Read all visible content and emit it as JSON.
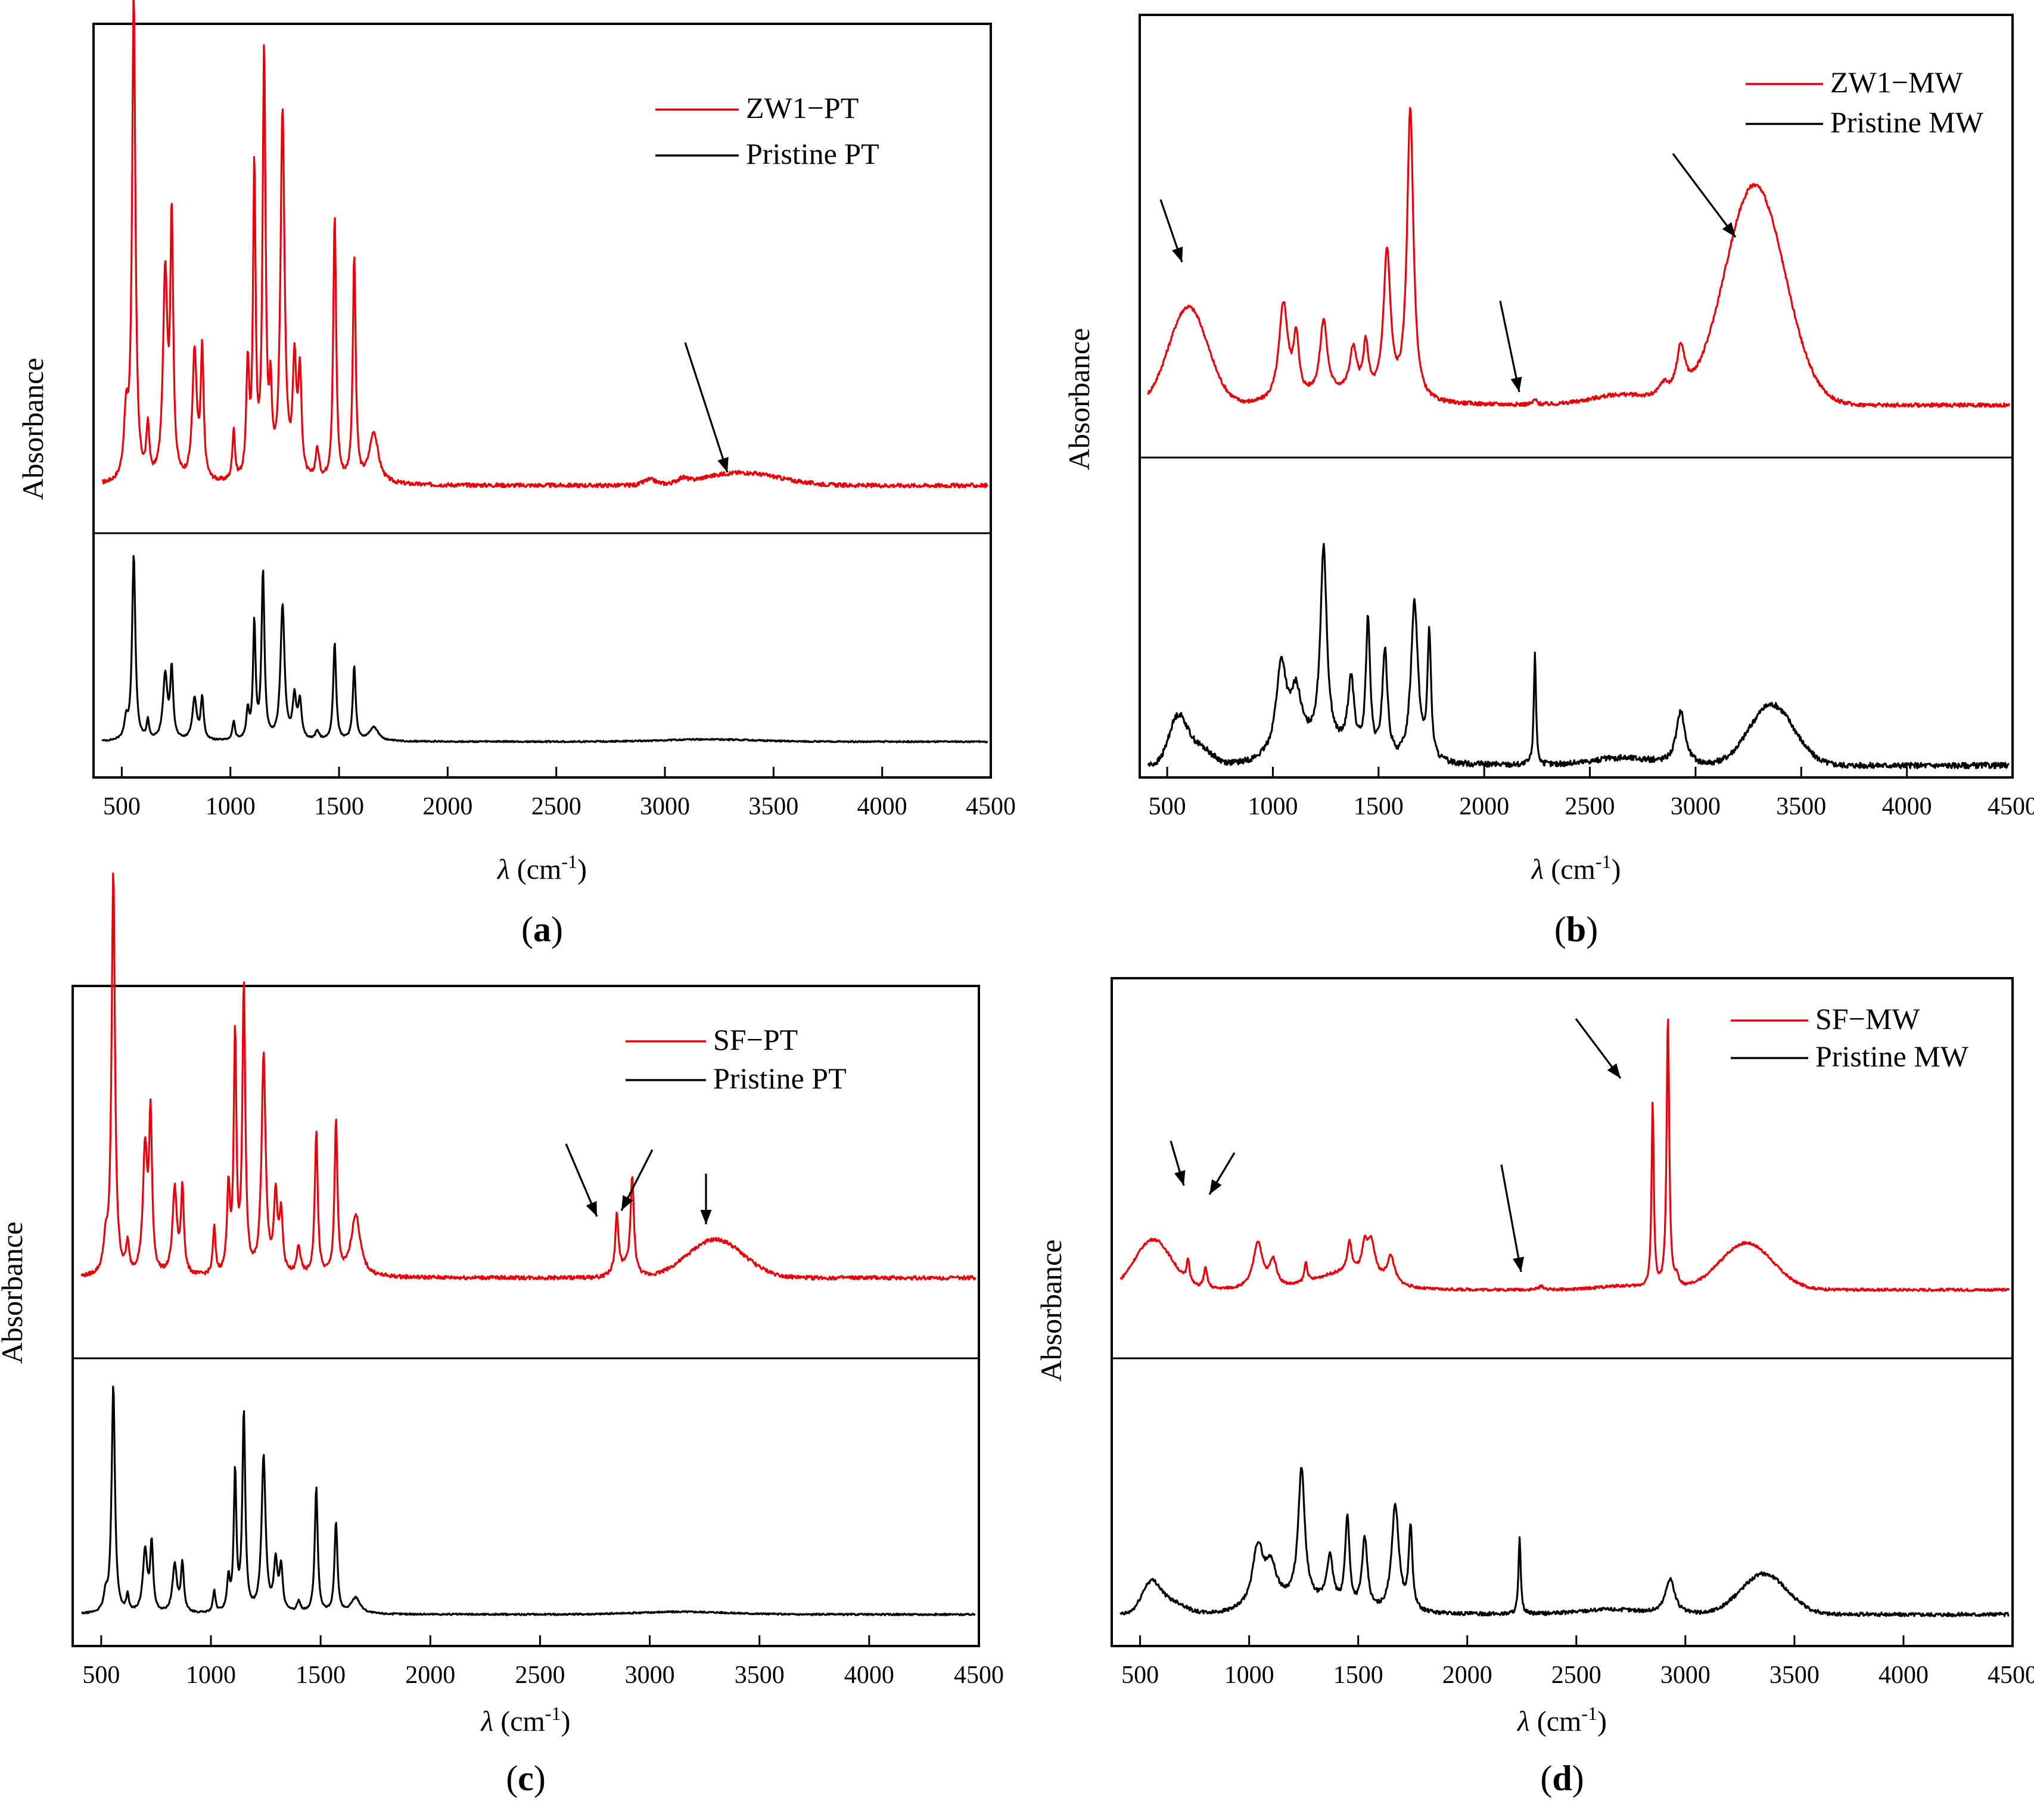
{
  "chart_data": [
    {
      "type": "line",
      "panel_label": "a",
      "xlabel_symbol": "λ",
      "xlabel_unit": "(cm",
      "xlabel_sup": "-1",
      "xlabel_close": ")",
      "ylabel": "Absorbance",
      "xlim": [
        370,
        4500
      ],
      "xticks": [
        500,
        1000,
        1500,
        2000,
        2500,
        3000,
        3500,
        4000,
        4500
      ],
      "grid": false,
      "legend_position": "top-right",
      "series": [
        {
          "name": "ZW1−PT",
          "color": "#e8000b",
          "level": "upper",
          "baseline": 0.3,
          "end": 0.3,
          "noise": 0.004,
          "peaks": [
            [
              520,
              0.12,
              12
            ],
            [
              555,
              0.95,
              9
            ],
            [
              620,
              0.1,
              8
            ],
            [
              700,
              0.4,
              12
            ],
            [
              730,
              0.5,
              8
            ],
            [
              835,
              0.25,
              12
            ],
            [
              870,
              0.25,
              8
            ],
            [
              1015,
              0.1,
              7
            ],
            [
              1080,
              0.22,
              8
            ],
            [
              1110,
              0.6,
              7
            ],
            [
              1155,
              0.83,
              8
            ],
            [
              1185,
              0.15,
              7
            ],
            [
              1240,
              0.72,
              11
            ],
            [
              1295,
              0.22,
              10
            ],
            [
              1320,
              0.2,
              9
            ],
            [
              1400,
              0.06,
              10
            ],
            [
              1480,
              0.52,
              8
            ],
            [
              1570,
              0.44,
              8
            ],
            [
              1660,
              0.1,
              25
            ]
          ],
          "bumps": [
            [
              3350,
              0.025,
              250
            ],
            [
              2930,
              0.01,
              40
            ],
            [
              3080,
              0.008,
              30
            ]
          ]
        },
        {
          "name": "Pristine PT",
          "color": "#000000",
          "level": "lower",
          "baseline": 0.08,
          "end": 0.08,
          "noise": 0.003,
          "peaks": [
            [
              520,
              0.08,
              10
            ],
            [
              555,
              0.8,
              9
            ],
            [
              620,
              0.08,
              7
            ],
            [
              700,
              0.28,
              12
            ],
            [
              730,
              0.3,
              8
            ],
            [
              835,
              0.18,
              12
            ],
            [
              870,
              0.18,
              8
            ],
            [
              1015,
              0.08,
              7
            ],
            [
              1080,
              0.12,
              8
            ],
            [
              1110,
              0.5,
              7
            ],
            [
              1150,
              0.72,
              8
            ],
            [
              1240,
              0.58,
              11
            ],
            [
              1295,
              0.18,
              10
            ],
            [
              1320,
              0.16,
              9
            ],
            [
              1400,
              0.04,
              10
            ],
            [
              1480,
              0.42,
              8
            ],
            [
              1570,
              0.32,
              8
            ],
            [
              1660,
              0.06,
              25
            ]
          ],
          "bumps": [
            [
              3200,
              0.01,
              300
            ]
          ]
        }
      ]
    },
    {
      "type": "line",
      "panel_label": "b",
      "xlabel_symbol": "λ",
      "xlabel_unit": "(cm",
      "xlabel_sup": "-1",
      "xlabel_close": ")",
      "ylabel": "Absorbance",
      "xlim": [
        370,
        4500
      ],
      "xticks": [
        500,
        1000,
        1500,
        2000,
        2500,
        3000,
        3500,
        4000,
        4500
      ],
      "grid": false,
      "legend_position": "top-right",
      "series": [
        {
          "name": "ZW1−MW",
          "color": "#e8000b",
          "level": "upper",
          "baseline": 0.18,
          "end": 0.18,
          "noise": 0.004,
          "peaks": [
            [
              1050,
              0.2,
              25
            ],
            [
              1110,
              0.12,
              15
            ],
            [
              1240,
              0.15,
              20
            ],
            [
              1380,
              0.09,
              20
            ],
            [
              1440,
              0.1,
              15
            ],
            [
              1540,
              0.3,
              20
            ],
            [
              1650,
              0.6,
              18
            ],
            [
              2240,
              0.01,
              10
            ],
            [
              2850,
              0.03,
              30
            ],
            [
              2930,
              0.1,
              25
            ]
          ],
          "bumps": [
            [
              600,
              0.2,
              130
            ],
            [
              3280,
              0.45,
              200
            ],
            [
              2650,
              0.02,
              200
            ],
            [
              1300,
              0.02,
              200
            ]
          ]
        },
        {
          "name": "Pristine MW",
          "color": "#000000",
          "level": "lower",
          "baseline": 0.03,
          "end": 0.01,
          "noise": 0.008,
          "peaks": [
            [
              1040,
              0.25,
              30
            ],
            [
              1110,
              0.15,
              30
            ],
            [
              1240,
              0.55,
              18
            ],
            [
              1370,
              0.2,
              18
            ],
            [
              1450,
              0.38,
              12
            ],
            [
              1530,
              0.3,
              15
            ],
            [
              1670,
              0.45,
              20
            ],
            [
              1740,
              0.35,
              10
            ],
            [
              2240,
              0.32,
              6
            ],
            [
              2930,
              0.15,
              25
            ]
          ],
          "bumps": [
            [
              550,
              0.13,
              60
            ],
            [
              650,
              0.05,
              80
            ],
            [
              3360,
              0.17,
              150
            ],
            [
              1220,
              0.05,
              200
            ],
            [
              2650,
              0.02,
              200
            ]
          ]
        }
      ]
    },
    {
      "type": "line",
      "panel_label": "c",
      "xlabel_symbol": "λ",
      "xlabel_unit": "(cm",
      "xlabel_sup": "-1",
      "xlabel_close": ")",
      "ylabel": "Absorbance",
      "xlim": [
        370,
        4500
      ],
      "xticks": [
        500,
        1000,
        1500,
        2000,
        2500,
        3000,
        3500,
        4000,
        4500
      ],
      "grid": false,
      "legend_position": "top-right",
      "series": [
        {
          "name": "SF−PT",
          "color": "#e8000b",
          "level": "upper",
          "baseline": 0.3,
          "end": 0.3,
          "noise": 0.004,
          "peaks": [
            [
              520,
              0.06,
              12
            ],
            [
              555,
              0.85,
              9
            ],
            [
              620,
              0.06,
              8
            ],
            [
              700,
              0.26,
              12
            ],
            [
              725,
              0.32,
              8
            ],
            [
              835,
              0.18,
              12
            ],
            [
              870,
              0.18,
              8
            ],
            [
              1015,
              0.1,
              7
            ],
            [
              1080,
              0.18,
              8
            ],
            [
              1110,
              0.5,
              7
            ],
            [
              1150,
              0.6,
              8
            ],
            [
              1240,
              0.46,
              11
            ],
            [
              1295,
              0.16,
              10
            ],
            [
              1320,
              0.12,
              9
            ],
            [
              1400,
              0.06,
              10
            ],
            [
              1480,
              0.3,
              8
            ],
            [
              1570,
              0.32,
              8
            ],
            [
              1660,
              0.13,
              25
            ],
            [
              2850,
              0.12,
              8
            ],
            [
              2920,
              0.2,
              9
            ]
          ],
          "bumps": [
            [
              3300,
              0.08,
              180
            ],
            [
              2880,
              0.02,
              60
            ]
          ]
        },
        {
          "name": "Pristine PT",
          "color": "#000000",
          "level": "lower",
          "baseline": 0.05,
          "end": 0.05,
          "noise": 0.003,
          "peaks": [
            [
              520,
              0.06,
              10
            ],
            [
              555,
              0.85,
              9
            ],
            [
              620,
              0.06,
              7
            ],
            [
              700,
              0.23,
              12
            ],
            [
              730,
              0.25,
              8
            ],
            [
              835,
              0.18,
              12
            ],
            [
              870,
              0.18,
              8
            ],
            [
              1015,
              0.08,
              7
            ],
            [
              1080,
              0.12,
              8
            ],
            [
              1110,
              0.52,
              7
            ],
            [
              1150,
              0.74,
              8
            ],
            [
              1240,
              0.58,
              11
            ],
            [
              1295,
              0.18,
              10
            ],
            [
              1320,
              0.16,
              9
            ],
            [
              1400,
              0.04,
              10
            ],
            [
              1480,
              0.47,
              8
            ],
            [
              1570,
              0.34,
              8
            ],
            [
              1660,
              0.06,
              25
            ]
          ],
          "bumps": [
            [
              3150,
              0.01,
              300
            ]
          ]
        }
      ]
    },
    {
      "type": "line",
      "panel_label": "d",
      "xlabel_symbol": "λ",
      "xlabel_unit": "(cm",
      "xlabel_sup": "-1",
      "xlabel_close": ")",
      "ylabel": "Absorbance",
      "xlim": [
        370,
        4500
      ],
      "xticks": [
        500,
        1000,
        1500,
        2000,
        2500,
        3000,
        3500,
        4000,
        4500
      ],
      "grid": false,
      "legend_position": "top-right",
      "series": [
        {
          "name": "SF−MW",
          "color": "#e8000b",
          "level": "upper",
          "baseline": 0.07,
          "end": 0.07,
          "noise": 0.004,
          "peaks": [
            [
              720,
              0.07,
              8
            ],
            [
              800,
              0.06,
              10
            ],
            [
              1040,
              0.14,
              25
            ],
            [
              1110,
              0.08,
              20
            ],
            [
              1260,
              0.06,
              8
            ],
            [
              1460,
              0.09,
              12
            ],
            [
              1530,
              0.08,
              15
            ],
            [
              1560,
              0.1,
              20
            ],
            [
              1650,
              0.08,
              20
            ],
            [
              2340,
              0.01,
              15
            ],
            [
              2850,
              0.56,
              6
            ],
            [
              2920,
              0.82,
              7
            ],
            [
              2960,
              0.03,
              10
            ]
          ],
          "bumps": [
            [
              560,
              0.15,
              120
            ],
            [
              3280,
              0.14,
              170
            ],
            [
              1450,
              0.05,
              200
            ],
            [
              2700,
              0.01,
              150
            ]
          ]
        },
        {
          "name": "Pristine MW",
          "color": "#000000",
          "level": "lower",
          "baseline": 0.06,
          "end": 0.04,
          "noise": 0.008,
          "peaks": [
            [
              1040,
              0.25,
              30
            ],
            [
              1100,
              0.15,
              30
            ],
            [
              1240,
              0.55,
              18
            ],
            [
              1370,
              0.2,
              18
            ],
            [
              1450,
              0.38,
              12
            ],
            [
              1530,
              0.3,
              15
            ],
            [
              1670,
              0.45,
              20
            ],
            [
              1740,
              0.35,
              10
            ],
            [
              2240,
              0.32,
              6
            ],
            [
              2930,
              0.15,
              25
            ]
          ],
          "bumps": [
            [
              550,
              0.13,
              60
            ],
            [
              650,
              0.05,
              80
            ],
            [
              3360,
              0.17,
              150
            ],
            [
              1220,
              0.05,
              200
            ],
            [
              2650,
              0.02,
              200
            ]
          ]
        }
      ]
    }
  ]
}
